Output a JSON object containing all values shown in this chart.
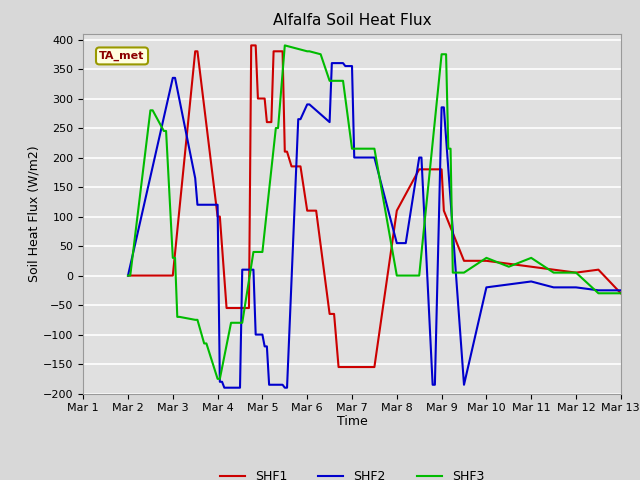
{
  "title": "Alfalfa Soil Heat Flux",
  "xlabel": "Time",
  "ylabel": "Soil Heat Flux (W/m2)",
  "annotation": "TA_met",
  "ylim": [
    -200,
    410
  ],
  "xlim": [
    0,
    12
  ],
  "xtick_labels": [
    "Mar 1",
    "Mar 2",
    "Mar 3",
    "Mar 4",
    "Mar 5",
    "Mar 6",
    "Mar 7",
    "Mar 8",
    "Mar 9",
    "Mar 10",
    "Mar 11",
    "Mar 12",
    "Mar 13"
  ],
  "ytick_values": [
    -200,
    -150,
    -100,
    -50,
    0,
    50,
    100,
    150,
    200,
    250,
    300,
    350,
    400
  ],
  "fig_facecolor": "#d8d8d8",
  "ax_facecolor": "#e0e0e0",
  "grid_color": "#ffffff",
  "SHF1_color": "#cc0000",
  "SHF2_color": "#0000cc",
  "SHF3_color": "#00bb00",
  "SHF1_x": [
    1.0,
    1.5,
    2.0,
    2.5,
    2.55,
    3.0,
    3.05,
    3.2,
    3.25,
    3.7,
    3.75,
    3.85,
    3.9,
    4.05,
    4.1,
    4.2,
    4.25,
    4.45,
    4.5,
    4.55,
    4.65,
    4.7,
    4.85,
    5.0,
    5.05,
    5.2,
    5.5,
    5.6,
    5.7,
    5.85,
    5.9,
    6.5,
    7.0,
    7.5,
    7.55,
    7.8,
    7.85,
    8.0,
    8.05,
    8.5,
    9.0,
    9.5,
    10.0,
    10.5,
    11.0,
    11.5,
    12.0
  ],
  "SHF1_y": [
    0,
    0,
    0,
    380,
    380,
    100,
    100,
    -55,
    -55,
    -55,
    390,
    390,
    300,
    300,
    260,
    260,
    380,
    380,
    210,
    210,
    185,
    185,
    185,
    110,
    110,
    110,
    -65,
    -65,
    -155,
    -155,
    -155,
    -155,
    110,
    180,
    180,
    180,
    180,
    180,
    110,
    25,
    25,
    20,
    15,
    10,
    5,
    10,
    -30
  ],
  "SHF2_x": [
    1.0,
    2.0,
    2.05,
    2.5,
    2.55,
    3.0,
    3.05,
    3.1,
    3.15,
    3.5,
    3.55,
    3.8,
    3.85,
    4.0,
    4.05,
    4.1,
    4.15,
    4.45,
    4.5,
    4.55,
    4.8,
    4.85,
    5.0,
    5.05,
    5.5,
    5.55,
    5.8,
    5.85,
    6.0,
    6.05,
    6.5,
    7.0,
    7.2,
    7.5,
    7.55,
    7.8,
    7.85,
    8.0,
    8.05,
    8.5,
    9.0,
    9.5,
    10.0,
    10.5,
    11.0,
    11.5,
    12.0
  ],
  "SHF2_y": [
    0,
    335,
    335,
    165,
    120,
    120,
    -180,
    -180,
    -190,
    -190,
    10,
    10,
    -100,
    -100,
    -120,
    -120,
    -185,
    -185,
    -190,
    -190,
    265,
    265,
    290,
    290,
    260,
    360,
    360,
    355,
    355,
    200,
    200,
    55,
    55,
    200,
    200,
    -185,
    -185,
    285,
    285,
    -185,
    -20,
    -15,
    -10,
    -20,
    -20,
    -25,
    -25
  ],
  "SHF3_x": [
    1.0,
    1.05,
    1.5,
    1.55,
    1.8,
    1.85,
    2.0,
    2.05,
    2.1,
    2.15,
    2.5,
    2.55,
    2.7,
    2.75,
    3.0,
    3.05,
    3.3,
    3.35,
    3.5,
    3.55,
    3.8,
    3.85,
    4.0,
    4.3,
    4.35,
    4.5,
    5.0,
    5.05,
    5.3,
    5.5,
    5.55,
    5.8,
    6.0,
    6.05,
    6.3,
    6.5,
    7.0,
    7.5,
    8.0,
    8.05,
    8.1,
    8.15,
    8.2,
    8.25,
    8.5,
    9.0,
    9.5,
    10.0,
    10.5,
    11.0,
    11.5,
    12.0
  ],
  "SHF3_y": [
    0,
    0,
    280,
    280,
    245,
    245,
    30,
    30,
    -70,
    -70,
    -75,
    -75,
    -115,
    -115,
    -175,
    -175,
    -80,
    -80,
    -80,
    -80,
    40,
    40,
    40,
    250,
    250,
    390,
    380,
    380,
    375,
    330,
    330,
    330,
    215,
    215,
    215,
    215,
    0,
    0,
    375,
    375,
    375,
    215,
    215,
    5,
    5,
    30,
    15,
    30,
    5,
    5,
    -30,
    -30
  ]
}
